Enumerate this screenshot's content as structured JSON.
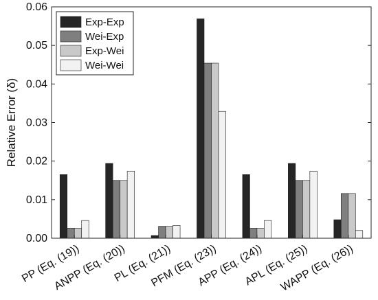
{
  "chart_data": {
    "type": "bar",
    "title": "",
    "xlabel": "",
    "ylabel": "Relative Error (δ)",
    "ylim": [
      0,
      0.06
    ],
    "yticks": [
      "0.00",
      "0.01",
      "0.02",
      "0.03",
      "0.04",
      "0.05",
      "0.06"
    ],
    "grid": false,
    "legend_position": "top-left",
    "categories": [
      "PP (Eq. (19))",
      "ANPP (Eq. (20))",
      "PL (Eq. (21))",
      "PFM (Eq. (23))",
      "APP (Eq. (24))",
      "APL (Eq. (25))",
      "WAPP (Eq. (26))"
    ],
    "series": [
      {
        "name": "Exp-Exp",
        "color": "#262626",
        "values": [
          0.0165,
          0.0194,
          0.0007,
          0.0569,
          0.0165,
          0.0194,
          0.0048
        ]
      },
      {
        "name": "Wei-Exp",
        "color": "#7f7f7f",
        "values": [
          0.0026,
          0.015,
          0.0031,
          0.0454,
          0.0026,
          0.015,
          0.0116
        ]
      },
      {
        "name": "Exp-Wei",
        "color": "#c9c9c9",
        "values": [
          0.0026,
          0.015,
          0.0031,
          0.0454,
          0.0026,
          0.015,
          0.0116
        ]
      },
      {
        "name": "Wei-Wei",
        "color": "#f2f2f2",
        "values": [
          0.0046,
          0.0174,
          0.0033,
          0.0329,
          0.0046,
          0.0174,
          0.002
        ]
      }
    ]
  }
}
